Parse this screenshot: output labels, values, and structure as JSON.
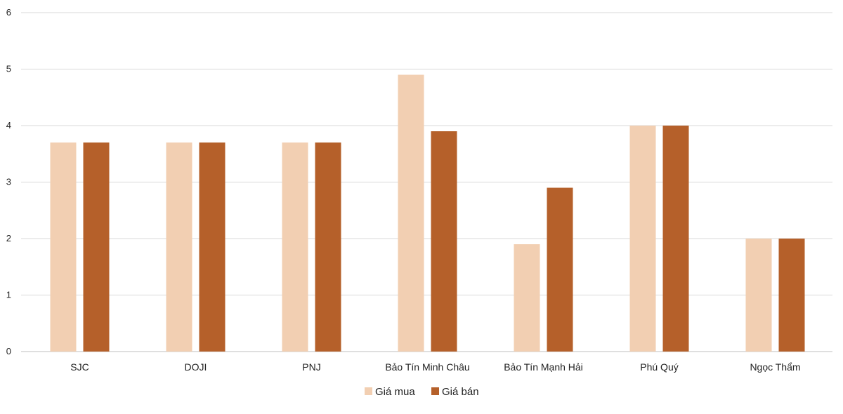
{
  "chart_data": {
    "type": "bar",
    "title": "",
    "xlabel": "",
    "ylabel": "",
    "categories": [
      "SJC",
      "DOJI",
      "PNJ",
      "Bảo Tín Minh Châu",
      "Bảo Tín Mạnh Hải",
      "Phú Quý",
      "Ngọc Thẩm"
    ],
    "series": [
      {
        "name": "Giá mua",
        "color": "#F2CFB2",
        "values": [
          3.7,
          3.7,
          3.7,
          4.9,
          1.9,
          4.0,
          2.0
        ]
      },
      {
        "name": "Giá bán",
        "color": "#B5602A",
        "values": [
          3.7,
          3.7,
          3.7,
          3.9,
          2.9,
          4.0,
          2.0
        ]
      }
    ],
    "ylim": [
      0,
      6
    ],
    "yticks": [
      0,
      1,
      2,
      3,
      4,
      5,
      6
    ],
    "ytick_labels": [
      "0",
      "1",
      "2",
      "3",
      "4",
      "5",
      "6"
    ],
    "grid": true,
    "gridline_color": "#D9D9D9",
    "legend_position": "bottom-center"
  }
}
